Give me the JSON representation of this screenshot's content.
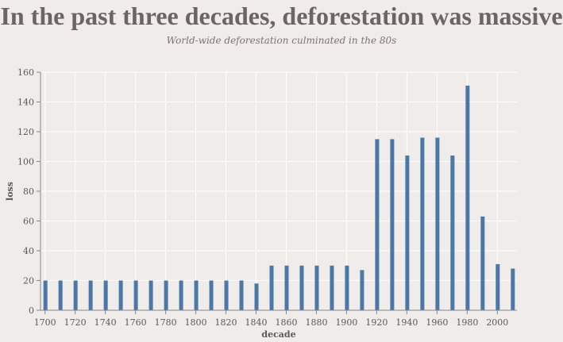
{
  "title": "In the past three decades, deforestation was massive",
  "subtitle": "World-wide deforestation culminated in the 80s",
  "colors": {
    "bar": "#4c78a8",
    "background": "#f0ecea",
    "grid": "#ffffff",
    "axis": "#888888"
  },
  "chart_data": {
    "type": "bar",
    "xlabel": "decade",
    "ylabel": "loss",
    "ylim": [
      0,
      160
    ],
    "y_ticks": [
      "0",
      "20",
      "40",
      "60",
      "80",
      "100",
      "120",
      "140",
      "160"
    ],
    "x_ticks": [
      "1700",
      "1720",
      "1740",
      "1760",
      "1780",
      "1800",
      "1820",
      "1840",
      "1860",
      "1880",
      "1900",
      "1920",
      "1940",
      "1960",
      "1980",
      "2000"
    ],
    "grid": true,
    "categories": [
      1700,
      1710,
      1720,
      1730,
      1740,
      1750,
      1760,
      1770,
      1780,
      1790,
      1800,
      1810,
      1820,
      1830,
      1840,
      1850,
      1860,
      1870,
      1880,
      1890,
      1900,
      1910,
      1920,
      1930,
      1940,
      1950,
      1960,
      1970,
      1980,
      1990,
      2000,
      2010
    ],
    "values": [
      20,
      20,
      20,
      20,
      20,
      20,
      20,
      20,
      20,
      20,
      20,
      20,
      20,
      20,
      18,
      30,
      30,
      30,
      30,
      30,
      30,
      27,
      115,
      115,
      104,
      116,
      116,
      104,
      151,
      63,
      31,
      28
    ]
  }
}
